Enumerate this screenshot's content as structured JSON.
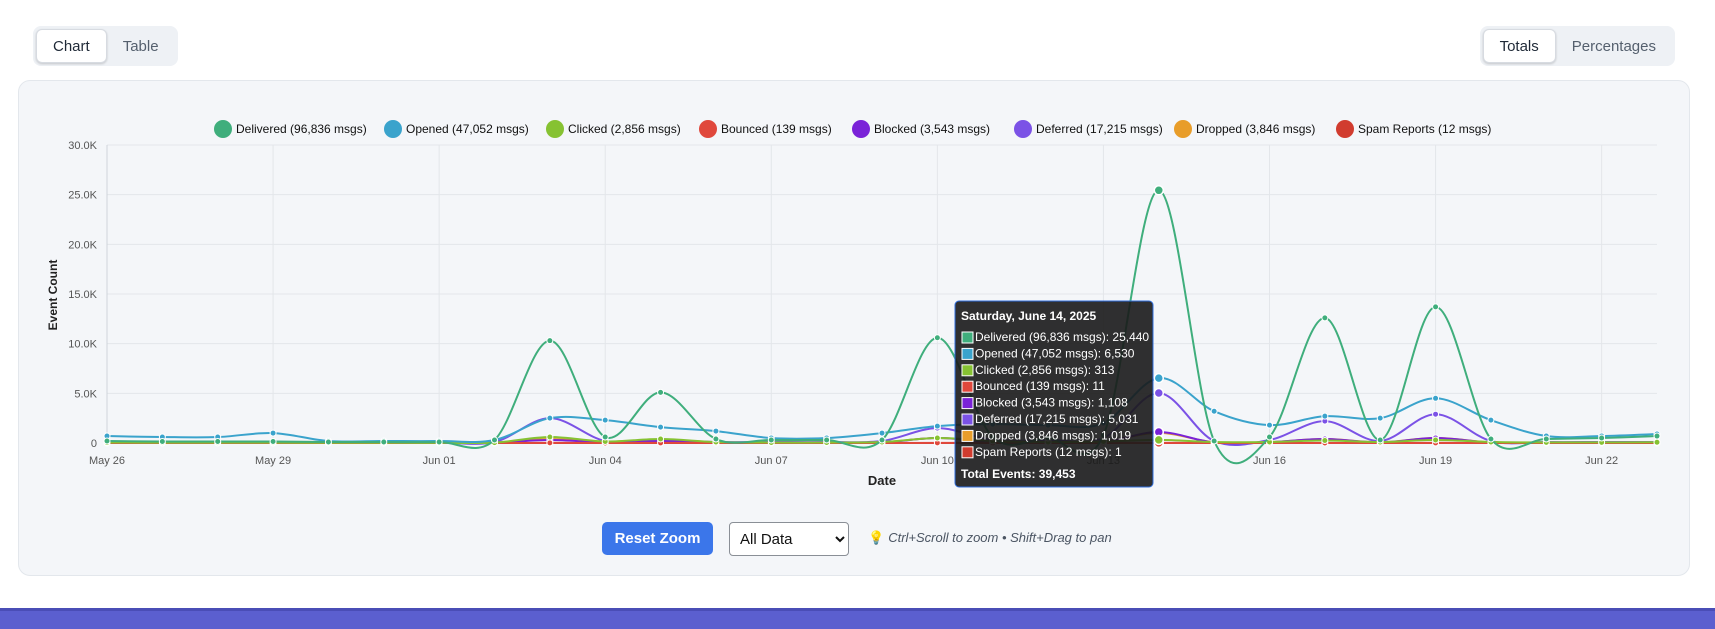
{
  "view_toggle": {
    "chart": "Chart",
    "table": "Table",
    "active": "chart"
  },
  "mode_toggle": {
    "totals": "Totals",
    "percentages": "Percentages",
    "active": "totals"
  },
  "chart_data": {
    "type": "line",
    "xlabel": "Date",
    "ylabel": "Event Count",
    "ylim": [
      0,
      30000
    ],
    "y_ticks": [
      "0",
      "5.0K",
      "10.0K",
      "15.0K",
      "20.0K",
      "25.0K",
      "30.0K"
    ],
    "x_tick_labels": [
      "May 26",
      "May 29",
      "Jun 01",
      "Jun 04",
      "Jun 07",
      "Jun 10",
      "Jun 13",
      "Jun 16",
      "Jun 19",
      "Jun 22"
    ],
    "x": [
      "May 26",
      "May 27",
      "May 28",
      "May 29",
      "May 30",
      "May 31",
      "Jun 01",
      "Jun 02",
      "Jun 03",
      "Jun 04",
      "Jun 05",
      "Jun 06",
      "Jun 07",
      "Jun 08",
      "Jun 09",
      "Jun 10",
      "Jun 11",
      "Jun 12",
      "Jun 13",
      "Jun 14",
      "Jun 15",
      "Jun 16",
      "Jun 17",
      "Jun 18",
      "Jun 19",
      "Jun 20",
      "Jun 21",
      "Jun 22",
      "Jun 23"
    ],
    "legend_position": "top-center",
    "grid": true,
    "series": [
      {
        "name": "Delivered (96,836 msgs)",
        "color": "#3fae7c",
        "values": [
          200,
          150,
          150,
          150,
          100,
          100,
          100,
          300,
          10300,
          600,
          5100,
          400,
          300,
          300,
          300,
          10600,
          600,
          500,
          800,
          25440,
          200,
          600,
          12600,
          300,
          13700,
          400,
          400,
          500,
          700
        ]
      },
      {
        "name": "Opened (47,052 msgs)",
        "color": "#3aa3cc",
        "values": [
          700,
          600,
          600,
          1000,
          200,
          200,
          200,
          300,
          2500,
          2300,
          1600,
          1200,
          500,
          500,
          1000,
          1700,
          1900,
          1800,
          2000,
          6530,
          3200,
          1800,
          2700,
          2500,
          4500,
          2300,
          700,
          700,
          900
        ]
      },
      {
        "name": "Clicked (2,856 msgs)",
        "color": "#86c232",
        "values": [
          50,
          40,
          40,
          40,
          20,
          20,
          20,
          40,
          600,
          150,
          400,
          100,
          50,
          50,
          100,
          500,
          200,
          100,
          150,
          313,
          100,
          100,
          250,
          100,
          300,
          100,
          60,
          60,
          80
        ]
      },
      {
        "name": "Bounced (139 msgs)",
        "color": "#e0483c",
        "values": [
          5,
          5,
          5,
          5,
          3,
          3,
          3,
          5,
          10,
          5,
          8,
          5,
          4,
          4,
          4,
          10,
          8,
          6,
          6,
          11,
          6,
          5,
          6,
          4,
          8,
          4,
          4,
          4,
          4
        ]
      },
      {
        "name": "Blocked (3,543 msgs)",
        "color": "#7a22d8",
        "values": [
          30,
          30,
          30,
          30,
          20,
          20,
          20,
          30,
          300,
          60,
          200,
          50,
          30,
          30,
          50,
          500,
          100,
          80,
          100,
          1108,
          50,
          80,
          400,
          50,
          500,
          50,
          30,
          40,
          50
        ]
      },
      {
        "name": "Deferred (17,215 msgs)",
        "color": "#7b52e6",
        "values": [
          100,
          80,
          80,
          80,
          50,
          50,
          50,
          100,
          2500,
          200,
          300,
          100,
          100,
          100,
          200,
          1500,
          300,
          300,
          500,
          5031,
          200,
          300,
          2200,
          200,
          2900,
          200,
          100,
          100,
          100
        ]
      },
      {
        "name": "Dropped (3,846 msgs)",
        "color": "#e89d2a",
        "values": [
          50,
          40,
          40,
          40,
          30,
          30,
          30,
          50,
          400,
          100,
          300,
          80,
          50,
          50,
          80,
          500,
          150,
          100,
          150,
          1019,
          80,
          100,
          400,
          80,
          500,
          80,
          50,
          50,
          60
        ]
      },
      {
        "name": "Spam Reports (12 msgs)",
        "color": "#d13c2f",
        "values": [
          0,
          0,
          0,
          0,
          0,
          0,
          0,
          0,
          1,
          0,
          1,
          0,
          0,
          0,
          0,
          1,
          0,
          0,
          0,
          1,
          0,
          0,
          1,
          0,
          1,
          0,
          0,
          0,
          0
        ]
      }
    ],
    "tooltip": {
      "date_index": 19,
      "title": "Saturday, June 14, 2025",
      "lines": [
        "Delivered (96,836 msgs): 25,440",
        "Opened (47,052 msgs): 6,530",
        "Clicked (2,856 msgs): 313",
        "Bounced (139 msgs): 11",
        "Blocked (3,543 msgs): 1,108",
        "Deferred (17,215 msgs): 5,031",
        "Dropped (3,846 msgs): 1,019",
        "Spam Reports (12 msgs): 1"
      ],
      "total": "Total Events: 39,453"
    }
  },
  "controls": {
    "reset_zoom": "Reset Zoom",
    "range_options": [
      "All Data"
    ],
    "range_selected": "All Data",
    "hint": "Ctrl+Scroll to zoom • Shift+Drag to pan"
  }
}
